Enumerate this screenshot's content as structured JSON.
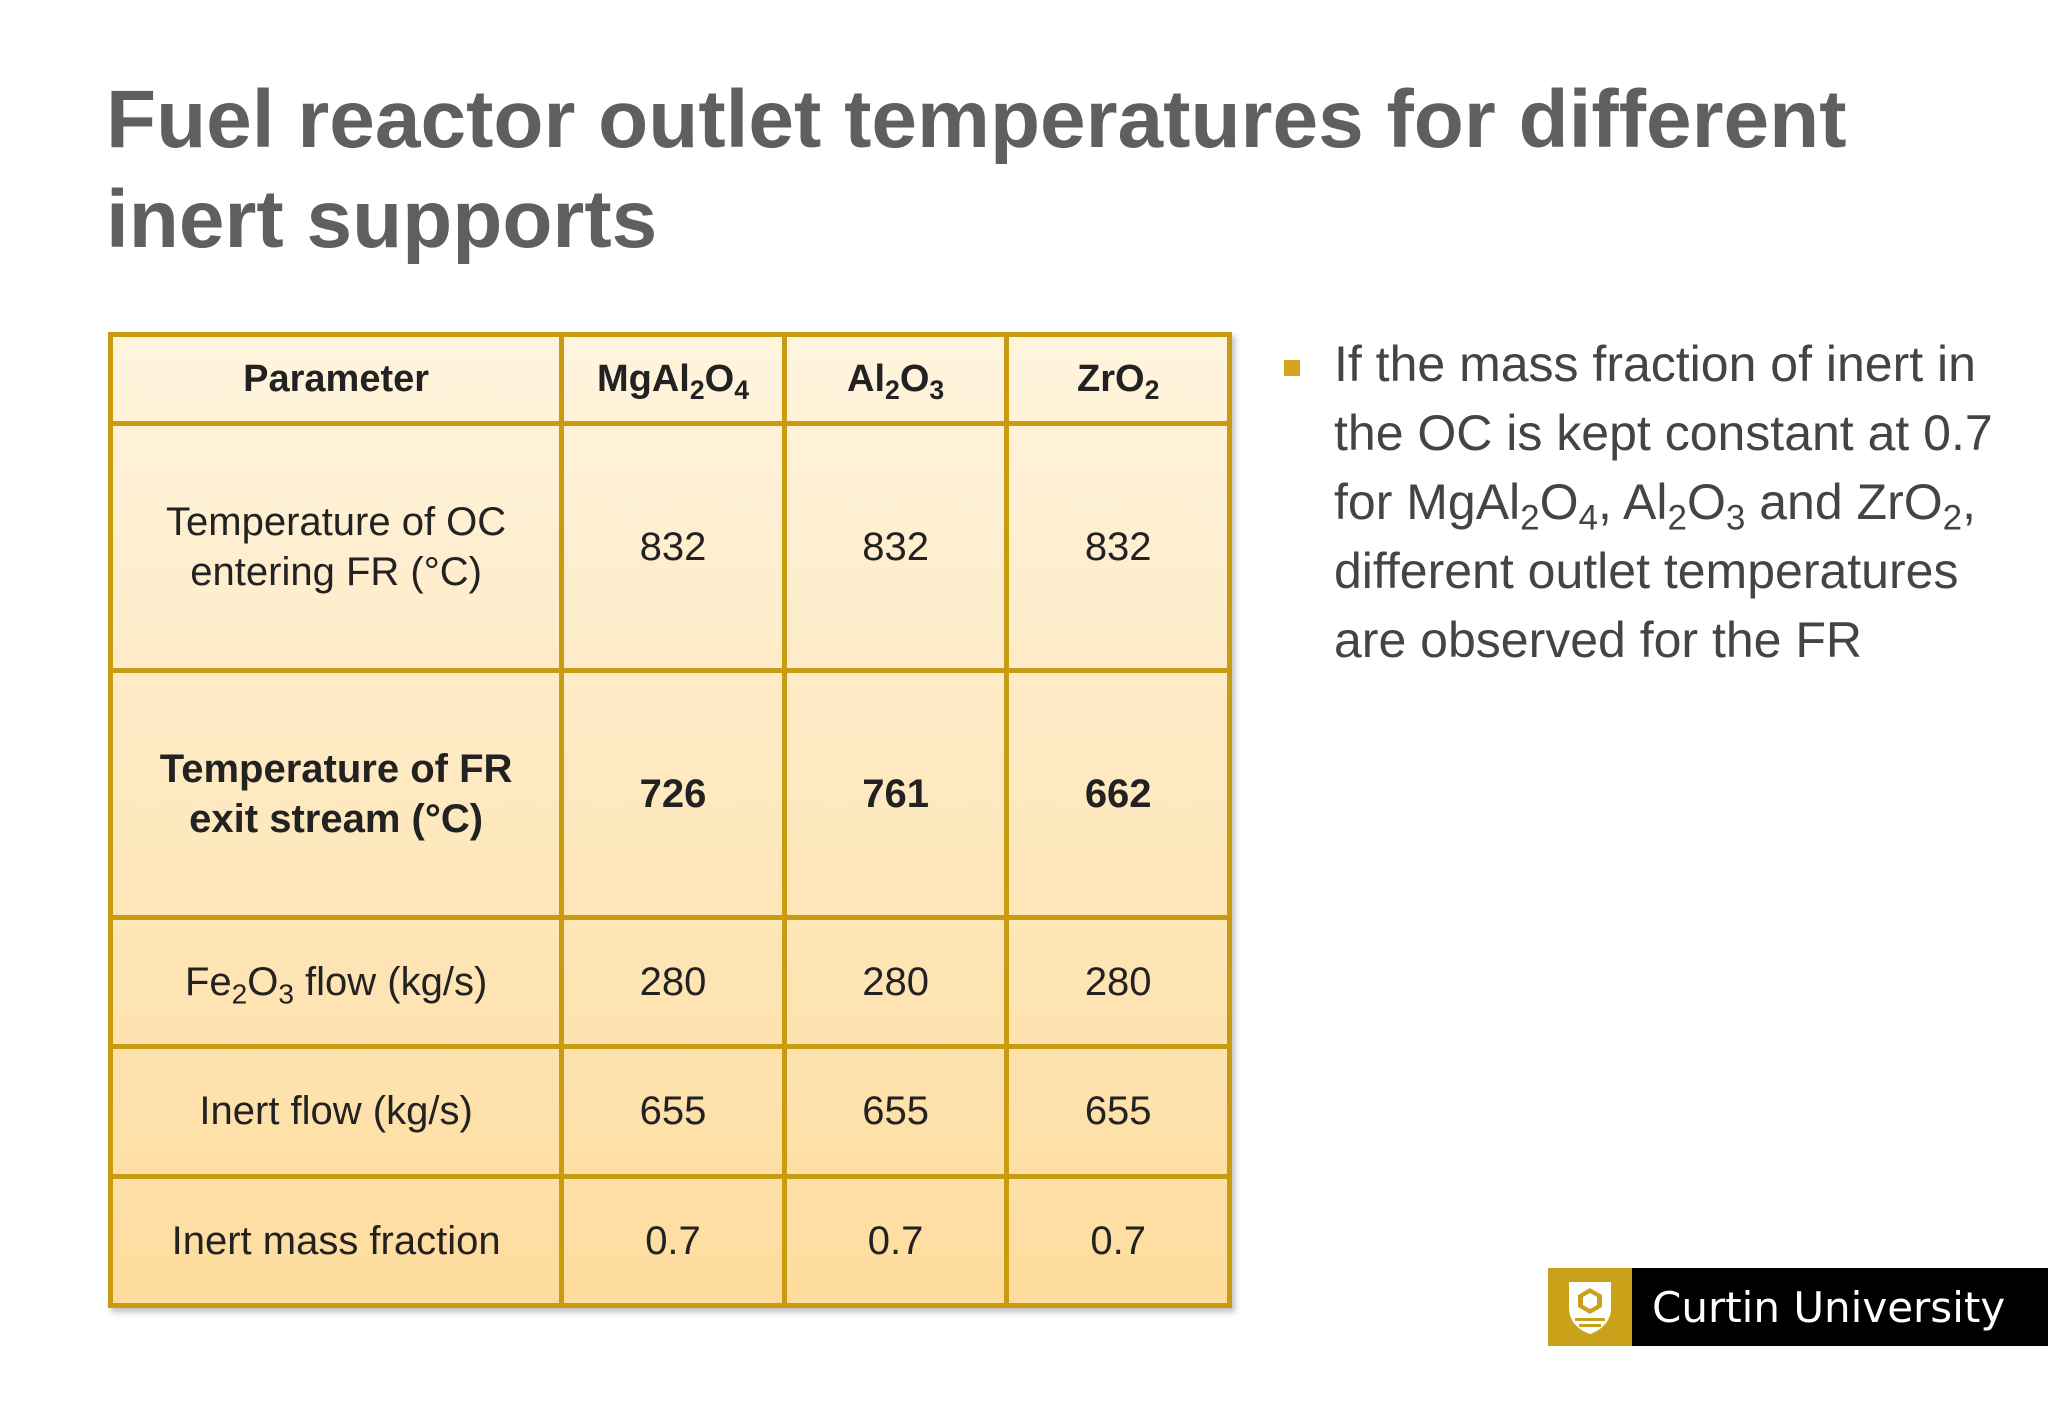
{
  "slide": {
    "title": "Fuel reactor outlet temperatures for different inert supports"
  },
  "table": {
    "headers": {
      "parameter": "Parameter",
      "mgal2o4": {
        "p1": "MgAl",
        "s1": "2",
        "p2": "O",
        "s2": "4"
      },
      "al2o3": {
        "p1": "Al",
        "s1": "2",
        "p2": "O",
        "s2": "3"
      },
      "zro2": {
        "p1": "ZrO",
        "s1": "2"
      }
    },
    "rows": [
      {
        "param": {
          "line1": "Temperature of OC",
          "line2": "entering FR (°C)"
        },
        "values": [
          "832",
          "832",
          "832"
        ]
      },
      {
        "param": {
          "line1": "Temperature of FR",
          "line2": "exit stream (°C)"
        },
        "values": [
          "726",
          "761",
          "662"
        ]
      },
      {
        "param": {
          "p1": "Fe",
          "s1": "2",
          "p2": "O",
          "s2": "3",
          "p3": " flow (kg/s)"
        },
        "values": [
          "280",
          "280",
          "280"
        ]
      },
      {
        "param": {
          "text": "Inert flow (kg/s)"
        },
        "values": [
          "655",
          "655",
          "655"
        ]
      },
      {
        "param": {
          "text": "Inert mass fraction"
        },
        "values": [
          "0.7",
          "0.7",
          "0.7"
        ]
      }
    ]
  },
  "bullet": {
    "t1": "If the mass fraction of inert in the OC is kept constant at 0.7 for MgAl",
    "s1": "2",
    "t2": "O",
    "s2": "4",
    "t3": ", Al",
    "s3": "2",
    "t4": "O",
    "s4": "3",
    "t5": " and ZrO",
    "s5": "2",
    "t6": ", different outlet temperatures are observed for the FR"
  },
  "logo": {
    "text": "Curtin University",
    "colors": {
      "shield": "#c9a21a",
      "background": "#000000"
    }
  },
  "colors": {
    "title": "#5f5f5f",
    "table_border": "#c89b11",
    "table_fill_top": "#fff4de",
    "table_fill_bottom": "#fedc9d",
    "bullet_marker": "#d7a51a"
  }
}
